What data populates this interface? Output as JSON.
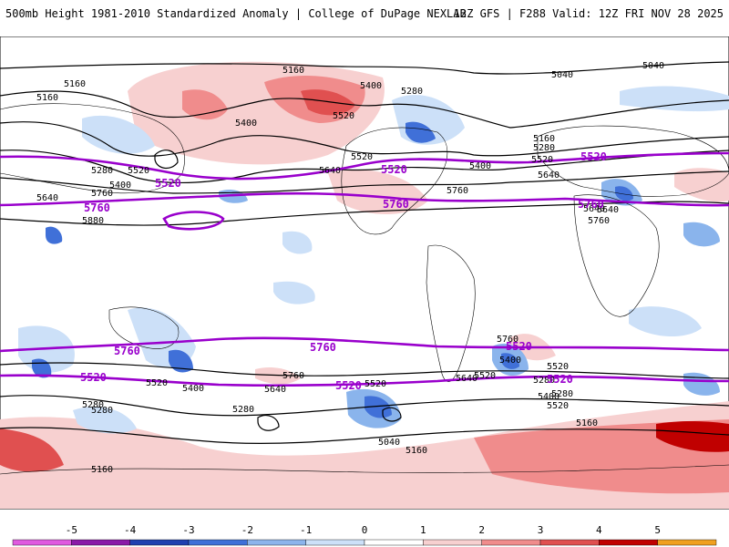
{
  "header": {
    "title_left": "500mb Height 1981-2010 Standardized Anomaly | College of DuPage NEXLAB",
    "title_right": "12Z GFS | F288 Valid: 12Z FRI NOV 28 2025"
  },
  "map": {
    "contour_labels_black": [
      "5160",
      "5040",
      "5040",
      "5160",
      "5400",
      "5280",
      "5520",
      "5400",
      "5160",
      "5280",
      "5520",
      "5400",
      "5640",
      "5520",
      "5400",
      "5160",
      "5280",
      "5520",
      "5640",
      "5760",
      "5880",
      "5640",
      "5760",
      "5640",
      "5760",
      "5640",
      "5520",
      "5280",
      "5400",
      "5520",
      "5760",
      "5400",
      "5640",
      "5520",
      "5160",
      "5280",
      "5040",
      "5160",
      "5400",
      "5280",
      "5520",
      "5640",
      "5760",
      "5520",
      "5280",
      "5160",
      "5280"
    ],
    "contour_labels_purple": [
      "5520",
      "5520",
      "5520",
      "5760",
      "5760",
      "5760",
      "5760",
      "5760",
      "5520",
      "5520",
      "5520",
      "5520"
    ],
    "colors": {
      "ocean": "#ffffff",
      "land_border": "#000000",
      "contour_black": "#000000",
      "contour_purple": "#9900cc",
      "anom_pos_1": "#f7d0d0",
      "anom_pos_2": "#f08c8c",
      "anom_pos_3": "#e05050",
      "anom_neg_1": "#cce0f8",
      "anom_neg_2": "#8ab4ec",
      "anom_neg_3": "#4070d8"
    }
  },
  "colorbar": {
    "ticks": [
      "-5",
      "-4",
      "-3",
      "-2",
      "-1",
      "0",
      "1",
      "2",
      "3",
      "4",
      "5"
    ],
    "colors": [
      "#e05ae0",
      "#8a1aa8",
      "#2040b0",
      "#3f70d8",
      "#8cb4ec",
      "#cce0f8",
      "#ffffff",
      "#f7d0d0",
      "#f08c8c",
      "#e05050",
      "#c00000",
      "#f0a020"
    ]
  }
}
